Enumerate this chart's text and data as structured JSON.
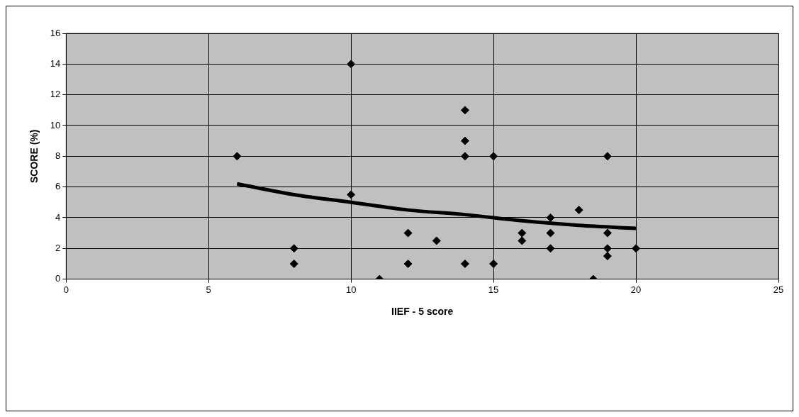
{
  "chart_data": {
    "type": "scatter",
    "xlabel": "IIEF - 5 score",
    "ylabel": "SCORE (%)",
    "xlim": [
      0,
      25
    ],
    "xticks": [
      0,
      5,
      10,
      15,
      20,
      25
    ],
    "ylim": [
      0,
      16
    ],
    "yticks": [
      0,
      2,
      4,
      6,
      8,
      10,
      12,
      14,
      16
    ],
    "grid": true,
    "legend": false,
    "marker": "diamond",
    "series": [
      {
        "type": "scatter",
        "color": "#000000",
        "x": [
          6,
          8,
          8,
          10,
          10,
          11,
          12,
          12,
          13,
          14,
          14,
          14,
          14,
          15,
          15,
          16,
          16,
          17,
          17,
          17,
          18,
          18.5,
          19,
          19,
          19,
          19,
          20
        ],
        "values": [
          8,
          2,
          1,
          14,
          5.5,
          0,
          3,
          1,
          2.5,
          11,
          9,
          8,
          1,
          8,
          1,
          3,
          2.5,
          4,
          3,
          2,
          4.5,
          0,
          8,
          3,
          2,
          1.5,
          2
        ]
      },
      {
        "type": "line",
        "color": "#000000",
        "marker": "none",
        "x": [
          6,
          8,
          10,
          12,
          14,
          16,
          18,
          20
        ],
        "values": [
          6.2,
          5.5,
          5.0,
          4.5,
          4.2,
          3.8,
          3.5,
          3.3
        ]
      }
    ]
  }
}
